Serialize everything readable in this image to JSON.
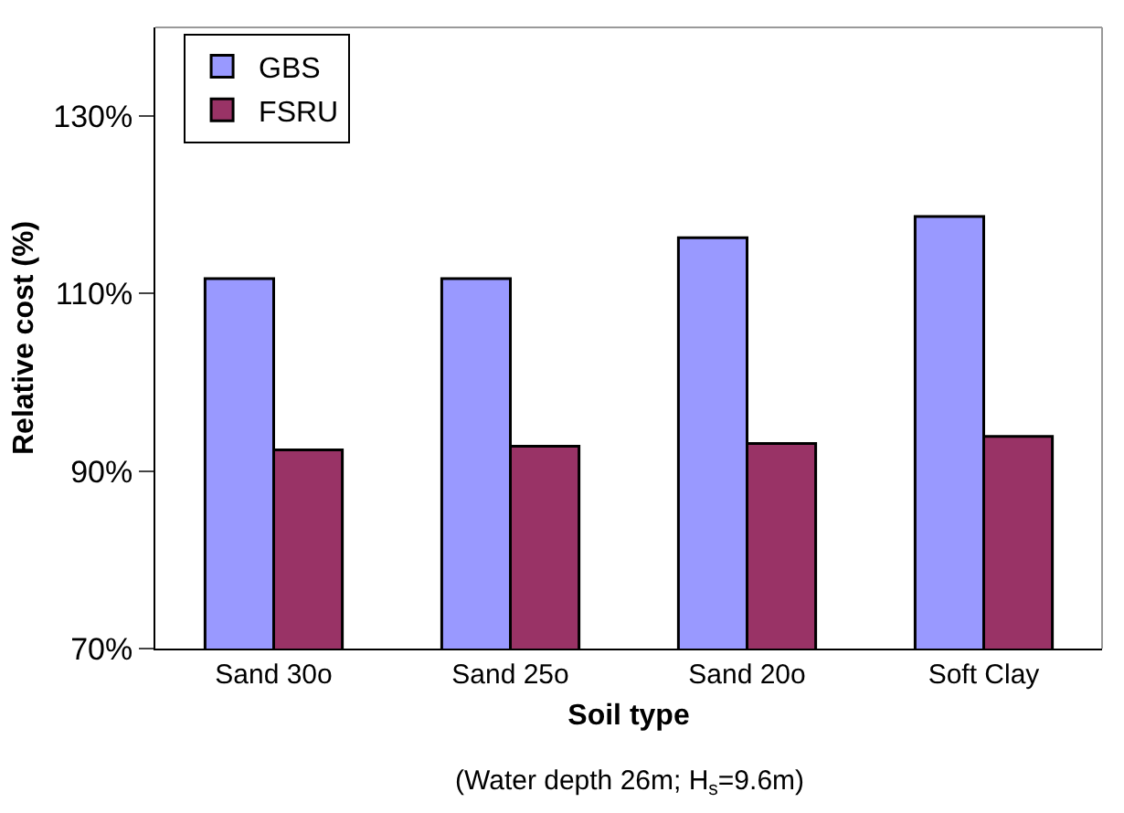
{
  "chart_data": {
    "type": "bar",
    "ylabel": "Relative cost (%)",
    "xlabel": "Soil type",
    "annotations": [
      "(Water depth 26m; H$_{s}$=9.6m)"
    ],
    "categories": [
      "Sand 30o",
      "Sand 25o",
      "Sand 20o",
      "Soft Clay"
    ],
    "series": [
      {
        "name": "GBS",
        "color": "#9999ff",
        "values": [
          111.7,
          111.7,
          116.3,
          118.7
        ]
      },
      {
        "name": "FSRU",
        "color": "#993366",
        "values": [
          92.4,
          92.8,
          93.1,
          93.9
        ]
      }
    ],
    "ylim": [
      70,
      140
    ],
    "yticks": [
      {
        "value": 70,
        "label": "70%"
      },
      {
        "value": 90,
        "label": "90%"
      },
      {
        "value": 110,
        "label": "110%"
      },
      {
        "value": 130,
        "label": "130%"
      }
    ],
    "legend": "top left"
  }
}
